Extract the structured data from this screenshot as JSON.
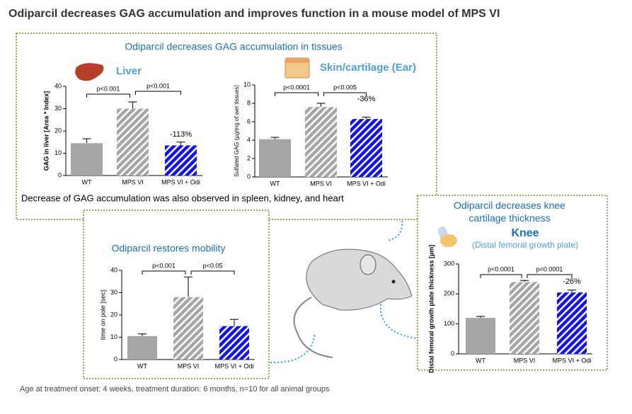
{
  "slide": {
    "title": "Odiparcil decreases GAG accumulation and improves function in a mouse model of MPS VI",
    "tissues_header": "Odiparcil decreases GAG accumulation in tissues",
    "tissues_note": "Decrease of GAG accumulation was also observed in spleen, kidney, and heart",
    "knee_header": "Odiparcil decreases knee cartilage thickness",
    "footnote": "Age at treatment onset: 4 weeks, treatment duration: 6 months, n=10 for all animal groups"
  },
  "chart_data": [
    {
      "type": "bar",
      "title": "Liver",
      "y_label": "GAG in liver [Area * Index]",
      "categories": [
        "WT",
        "MPS VI",
        "MPS VI + Odi"
      ],
      "values": [
        14.5,
        30,
        13.5
      ],
      "errors": [
        2,
        3,
        1.5
      ],
      "colors": [
        "#a6a6a6",
        "#a6a6a6",
        "#1414e6"
      ],
      "hatch": [
        false,
        true,
        true
      ],
      "comparisons": [
        "p<0.001",
        "p<0.001"
      ],
      "change_label": "-113%",
      "ylim": [
        0,
        40
      ],
      "yticks": [
        0,
        10,
        20,
        30,
        40
      ]
    },
    {
      "type": "bar",
      "title": "Skin/cartilage (Ear)",
      "y_label": "Sulfated GAG (µg/mg of wet tissues)",
      "categories": [
        "WT",
        "MPS VI",
        "MPS VI + Odi"
      ],
      "values": [
        4.1,
        7.6,
        6.3
      ],
      "errors": [
        0.2,
        0.4,
        0.2
      ],
      "colors": [
        "#a6a6a6",
        "#a6a6a6",
        "#1414e6"
      ],
      "hatch": [
        false,
        true,
        true
      ],
      "comparisons": [
        "p<0.0001",
        "p<0.005"
      ],
      "change_label": "-36%",
      "ylim": [
        0,
        10
      ],
      "yticks": [
        0,
        2,
        4,
        6,
        8,
        10
      ]
    },
    {
      "type": "bar",
      "title": "Odiparcil restores mobility",
      "y_label": "time on pole [sec]",
      "categories": [
        "WT",
        "MPS VI",
        "MPS VI + Odi"
      ],
      "values": [
        10.5,
        28,
        15
      ],
      "errors": [
        1,
        9,
        3
      ],
      "colors": [
        "#a6a6a6",
        "#a6a6a6",
        "#1414e6"
      ],
      "hatch": [
        false,
        true,
        true
      ],
      "comparisons": [
        "p<0.001",
        "p<0.05"
      ],
      "ylim": [
        0,
        40
      ],
      "yticks": [
        0,
        10,
        20,
        30,
        40
      ]
    },
    {
      "type": "bar",
      "title": "Knee",
      "subtitle": "(Distal femoral growth plate)",
      "y_label": "Distal femoral growth plate thickness [µm]",
      "categories": [
        "WT",
        "MPS VI",
        "MPS VI + Odi"
      ],
      "values": [
        120,
        240,
        205
      ],
      "errors": [
        5,
        5,
        8
      ],
      "colors": [
        "#a6a6a6",
        "#a6a6a6",
        "#1414e6"
      ],
      "hatch": [
        false,
        true,
        true
      ],
      "comparisons": [
        "p<0.0001",
        "p<0.0001"
      ],
      "change_label": "-26%",
      "ylim": [
        0,
        300
      ],
      "yticks": [
        0,
        100,
        200,
        300
      ]
    }
  ]
}
